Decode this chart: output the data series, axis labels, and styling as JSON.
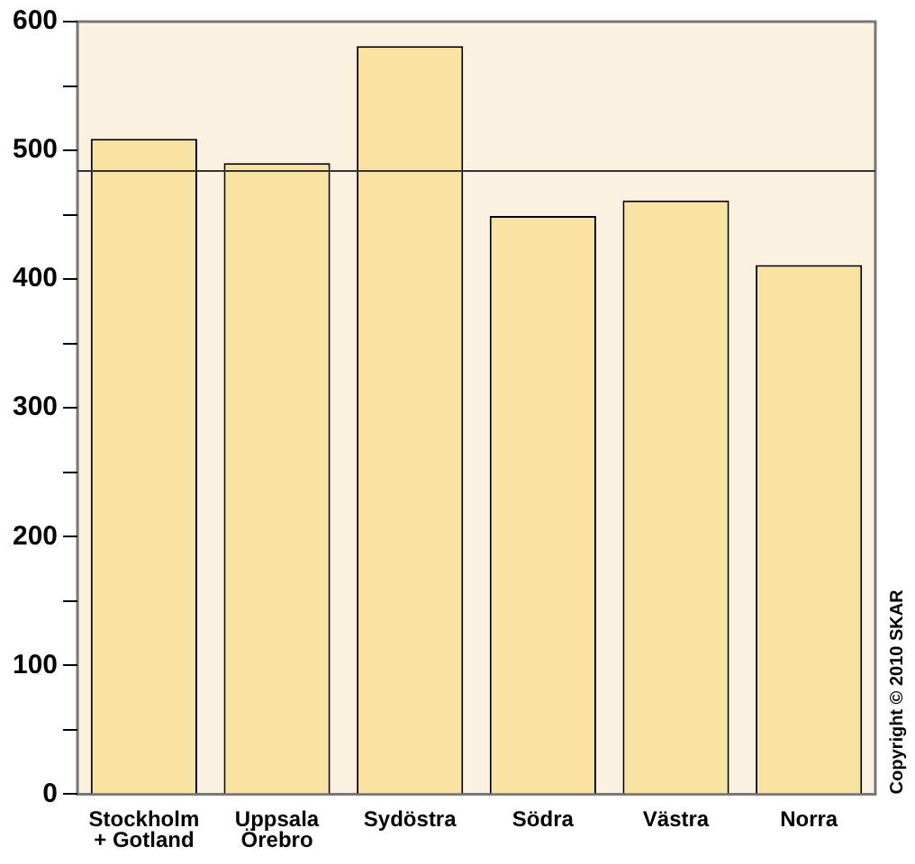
{
  "chart_data": {
    "type": "bar",
    "categories": [
      "Stockholm\n+ Gotland",
      "Uppsala\nÖrebro",
      "Sydöstra",
      "Södra",
      "Västra",
      "Norra"
    ],
    "values": [
      509,
      490,
      581,
      449,
      461,
      411
    ],
    "color": "#f8e3a3",
    "ylim": [
      0,
      600
    ],
    "yticks": [
      0,
      {
        "value": 50,
        "label": null
      },
      100,
      {
        "value": 150,
        "label": null
      },
      200,
      {
        "value": 250,
        "label": null
      },
      300,
      {
        "value": 350,
        "label": null
      },
      400,
      {
        "value": 450,
        "label": null
      },
      500,
      {
        "value": 550,
        "label": null
      },
      600
    ],
    "grid": false,
    "legend": false,
    "ref_lines": [
      {
        "axis": "y",
        "value": 484,
        "color": "#333333"
      }
    ],
    "annotations": [
      "Copyright © 2010 SKAR"
    ]
  }
}
